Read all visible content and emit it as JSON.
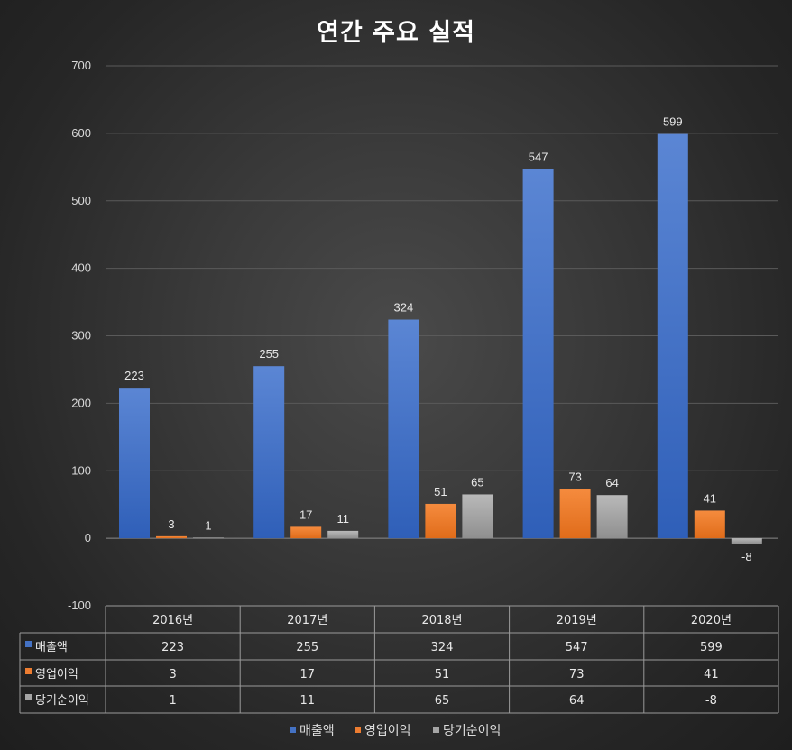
{
  "chart_data": {
    "type": "bar",
    "title": "연간 주요 실적",
    "categories": [
      "2016년",
      "2017년",
      "2018년",
      "2019년",
      "2020년"
    ],
    "series": [
      {
        "name": "매출액",
        "values": [
          223,
          255,
          324,
          547,
          599
        ],
        "color": "#4472c4"
      },
      {
        "name": "영업이익",
        "values": [
          3,
          17,
          51,
          73,
          41
        ],
        "color": "#ed7d31"
      },
      {
        "name": "당기순이익",
        "values": [
          1,
          11,
          65,
          64,
          -8
        ],
        "color": "#a5a5a5"
      }
    ],
    "ylim": [
      -100,
      700
    ],
    "yticks": [
      -100,
      0,
      100,
      200,
      300,
      400,
      500,
      600,
      700
    ],
    "grid": true,
    "data_table": true,
    "legend": "bottom"
  }
}
